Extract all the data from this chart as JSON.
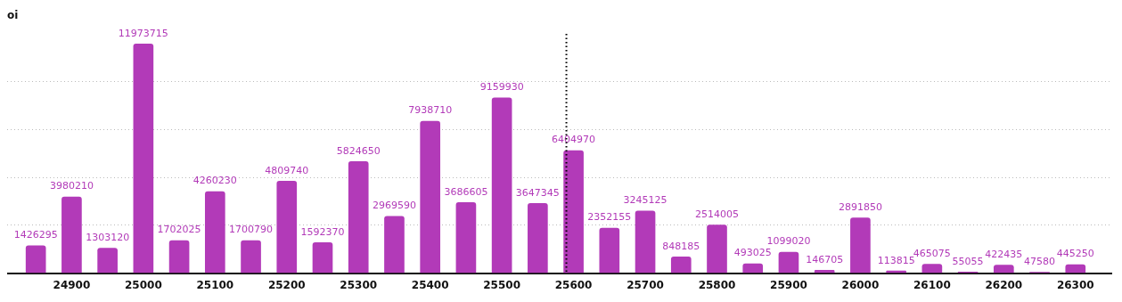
{
  "chart_data": {
    "type": "bar",
    "ylabel": "oi",
    "x": [
      24850,
      24900,
      24950,
      25000,
      25050,
      25100,
      25150,
      25200,
      25250,
      25300,
      25350,
      25400,
      25450,
      25500,
      25550,
      25600,
      25650,
      25700,
      25750,
      25800,
      25850,
      25900,
      25950,
      26000,
      26050,
      26100,
      26150,
      26200,
      26250,
      26300
    ],
    "values": [
      1426295,
      3980210,
      1303120,
      11973715,
      1702025,
      4260230,
      1700790,
      4809740,
      1592370,
      5824650,
      2969590,
      7938710,
      3686605,
      9159930,
      3647345,
      6404970,
      2352155,
      3245125,
      848185,
      2514005,
      493025,
      1099020,
      146705,
      2891850,
      113815,
      465075,
      55055,
      422435,
      47580,
      445250
    ],
    "color": "#b23ab8",
    "data_labels": true,
    "xlim": [
      24810,
      26350
    ],
    "xticks": [
      24900,
      25000,
      25100,
      25200,
      25300,
      25400,
      25500,
      25600,
      25700,
      25800,
      25900,
      26000,
      26100,
      26200,
      26300
    ],
    "ylim": [
      0,
      12500000
    ],
    "yticks": [
      {
        "value": 0,
        "label": null
      },
      {
        "value": 2500000,
        "label": null
      },
      {
        "value": 5000000,
        "label": null
      },
      {
        "value": 7500000,
        "label": null
      },
      {
        "value": 10000000,
        "label": null
      }
    ],
    "tick_labels": "x",
    "grid": "y",
    "legend": false,
    "ref_lines": [
      {
        "axis": "x",
        "value": 25590,
        "line_style": "dotted",
        "color": "#000000"
      }
    ]
  }
}
